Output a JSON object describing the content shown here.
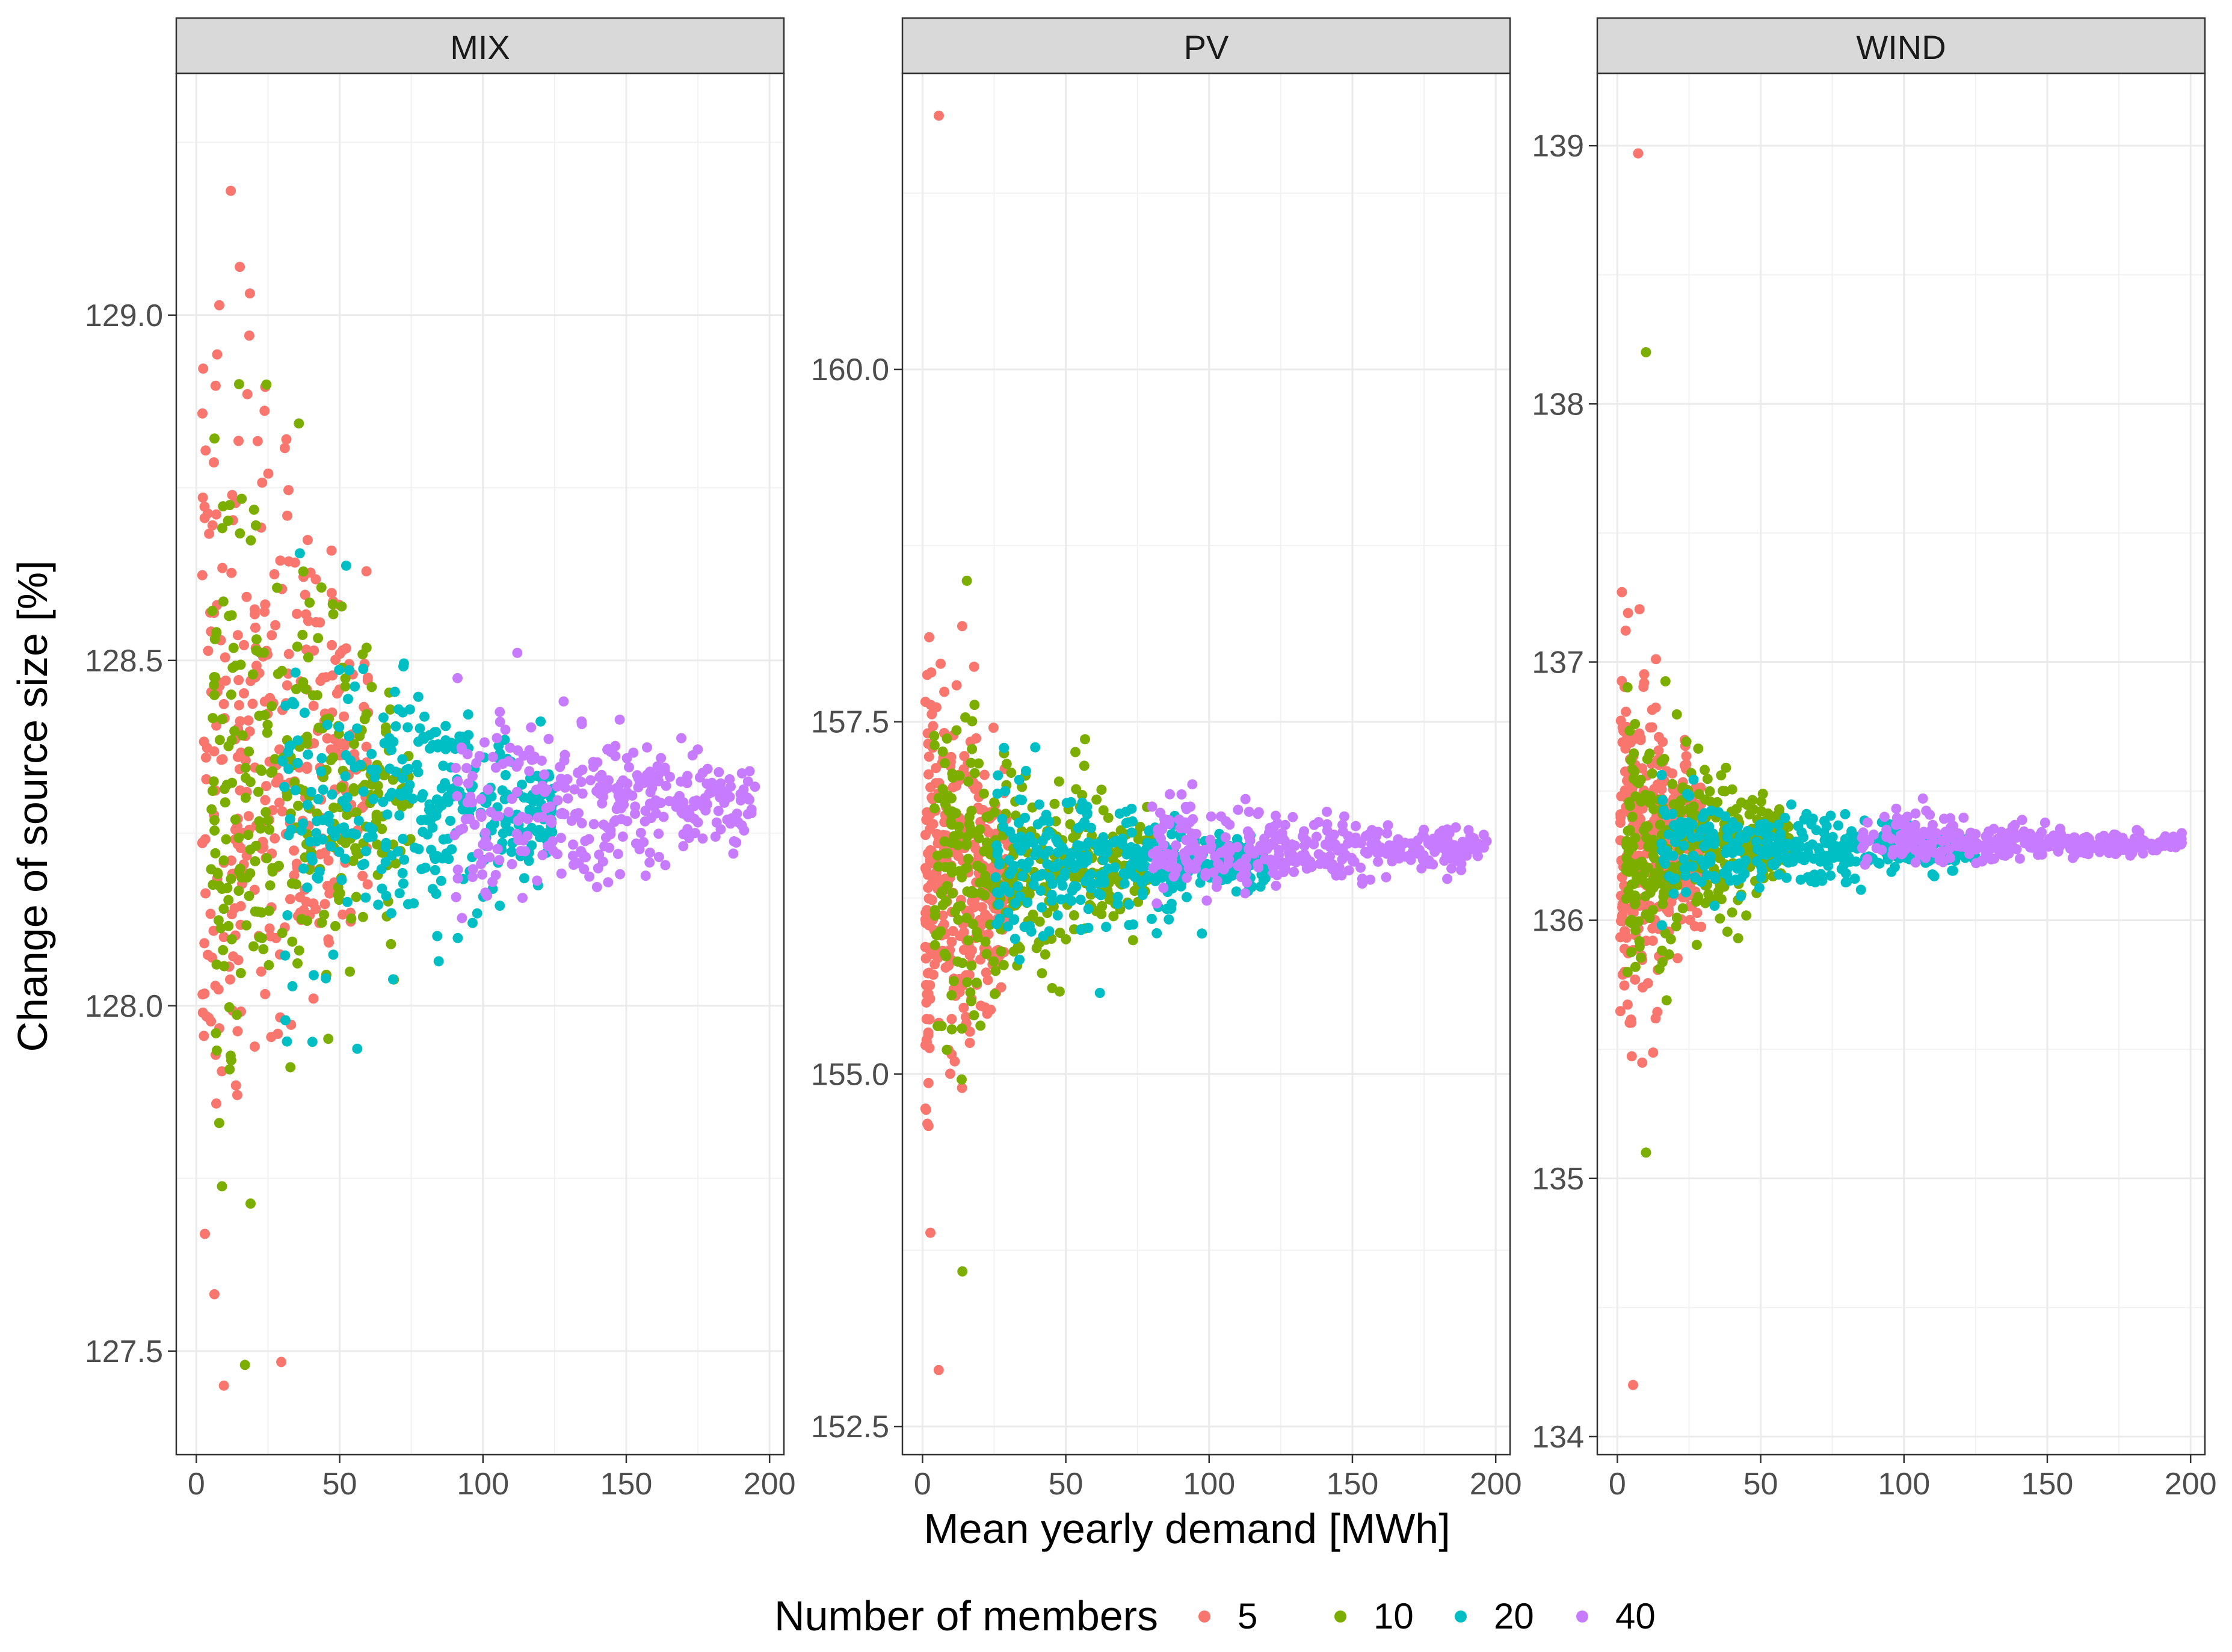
{
  "chart_data": {
    "type": "scatter",
    "xlabel": "Mean yearly demand [MWh]",
    "ylabel": "Change of source size [%]",
    "legend": {
      "title": "Number of members",
      "placement": "bottom",
      "entries": [
        {
          "label": "5",
          "color": "#F8766D"
        },
        {
          "label": "10",
          "color": "#7CAE00"
        },
        {
          "label": "20",
          "color": "#00BFC4"
        },
        {
          "label": "40",
          "color": "#C77CFF"
        }
      ]
    },
    "grid": true,
    "facets": [
      {
        "name": "MIX",
        "xlim": [
          -7,
          205
        ],
        "ylim": [
          127.35,
          129.35
        ],
        "xticks": [
          0,
          50,
          100,
          150,
          200
        ],
        "xtick_labels": [
          "0",
          "50",
          "100",
          "150",
          "200"
        ],
        "yticks": [
          127.5,
          128.0,
          128.5,
          129.0
        ],
        "ytick_labels": [
          "127.5",
          "128.0",
          "128.5",
          "129.0"
        ],
        "series": [
          {
            "name": "5",
            "x_range": [
              2,
              60
            ],
            "y_center": 128.35,
            "y_spread": 0.48,
            "y_min": 127.45,
            "y_max": 129.18,
            "count": 340,
            "tail": true
          },
          {
            "name": "10",
            "x_range": [
              5,
              75
            ],
            "y_center": 128.3,
            "y_spread": 0.35,
            "y_min": 127.48,
            "y_max": 128.9,
            "count": 300,
            "tail": true
          },
          {
            "name": "20",
            "x_range": [
              30,
              125
            ],
            "y_center": 128.28,
            "y_spread": 0.22,
            "y_min": 127.65,
            "y_max": 128.78,
            "count": 340,
            "tail": false
          },
          {
            "name": "40",
            "x_range": [
              90,
              195
            ],
            "y_center": 128.3,
            "y_spread": 0.14,
            "y_min": 127.85,
            "y_max": 128.6,
            "count": 340,
            "tail": false
          }
        ]
      },
      {
        "name": "PV",
        "xlim": [
          -7,
          205
        ],
        "ylim": [
          152.3,
          162.1
        ],
        "xticks": [
          0,
          50,
          100,
          150,
          200
        ],
        "xtick_labels": [
          "0",
          "50",
          "100",
          "150",
          "200"
        ],
        "yticks": [
          152.5,
          155.0,
          157.5,
          160.0
        ],
        "ytick_labels": [
          "152.5",
          "155.0",
          "157.5",
          "160.0"
        ],
        "series": [
          {
            "name": "5",
            "x_range": [
              1,
              30
            ],
            "y_center": 156.4,
            "y_spread": 1.3,
            "y_min": 152.9,
            "y_max": 161.8,
            "count": 360,
            "tail": true
          },
          {
            "name": "10",
            "x_range": [
              4,
              80
            ],
            "y_center": 156.5,
            "y_spread": 0.8,
            "y_min": 153.6,
            "y_max": 158.5,
            "count": 360,
            "tail": true
          },
          {
            "name": "20",
            "x_range": [
              25,
              120
            ],
            "y_center": 156.5,
            "y_spread": 0.5,
            "y_min": 155.0,
            "y_max": 157.6,
            "count": 360,
            "tail": false
          },
          {
            "name": "40",
            "x_range": [
              80,
              197
            ],
            "y_center": 156.6,
            "y_spread": 0.3,
            "y_min": 155.7,
            "y_max": 157.3,
            "count": 360,
            "tail": false
          }
        ]
      },
      {
        "name": "WIND",
        "xlim": [
          -7,
          205
        ],
        "ylim": [
          133.93,
          139.28
        ],
        "xticks": [
          0,
          50,
          100,
          150,
          200
        ],
        "xtick_labels": [
          "0",
          "50",
          "100",
          "150",
          "200"
        ],
        "yticks": [
          134,
          135,
          136,
          137,
          138,
          139
        ],
        "ytick_labels": [
          "134",
          "135",
          "136",
          "137",
          "138",
          "139"
        ],
        "series": [
          {
            "name": "5",
            "x_range": [
              1,
              30
            ],
            "y_center": 136.3,
            "y_spread": 0.6,
            "y_min": 134.2,
            "y_max": 138.97,
            "count": 360,
            "tail": true
          },
          {
            "name": "10",
            "x_range": [
              3,
              60
            ],
            "y_center": 136.3,
            "y_spread": 0.35,
            "y_min": 135.1,
            "y_max": 138.2,
            "count": 360,
            "tail": true
          },
          {
            "name": "20",
            "x_range": [
              15,
              125
            ],
            "y_center": 136.28,
            "y_spread": 0.18,
            "y_min": 135.55,
            "y_max": 136.75,
            "count": 360,
            "tail": false
          },
          {
            "name": "40",
            "x_range": [
              85,
              197
            ],
            "y_center": 136.3,
            "y_spread": 0.08,
            "y_min": 136.05,
            "y_max": 136.55,
            "count": 360,
            "tail": false
          }
        ]
      }
    ]
  }
}
